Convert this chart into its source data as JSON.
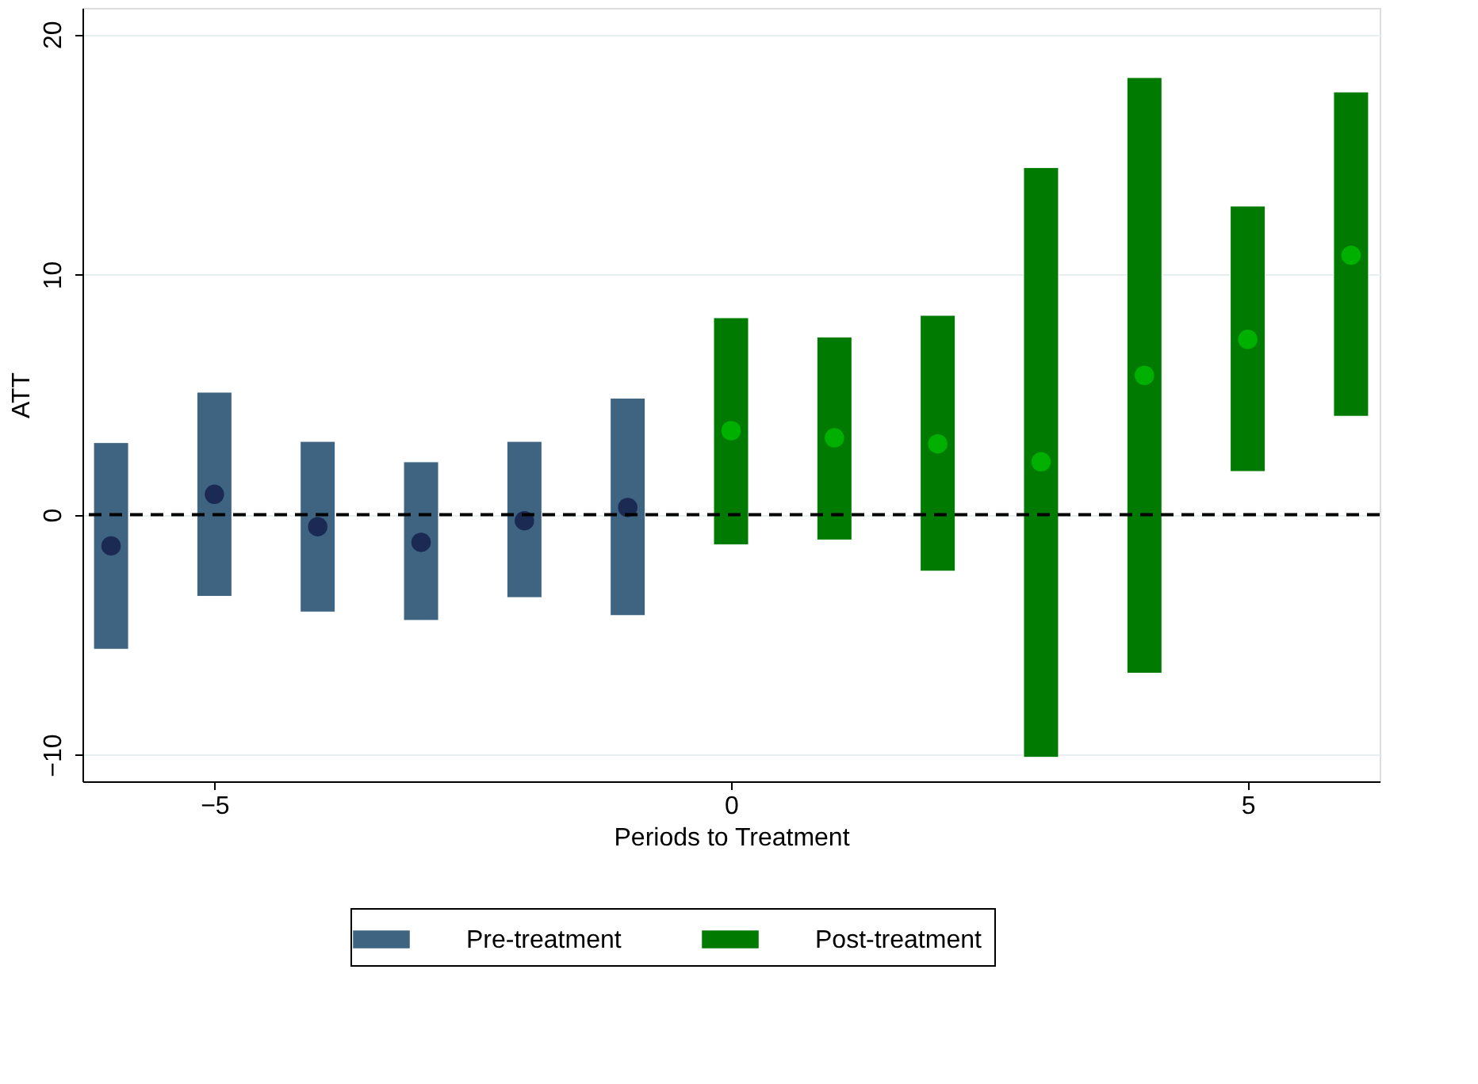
{
  "chart_data": {
    "type": "bar",
    "xlabel": "Periods to Treatment",
    "ylabel": "ATT",
    "xlim": [
      -6.2,
      6.2
    ],
    "xticks": [
      -5,
      0,
      5
    ],
    "ylim": [
      -11.1,
      21.1
    ],
    "yticks": [
      -10,
      0,
      10,
      20
    ],
    "grid": "y",
    "legend": "bottom",
    "ref_lines": [
      {
        "axis": "y",
        "value": 0,
        "color": "#000000",
        "line_style": "dashed"
      }
    ],
    "series": [
      {
        "name": "Pre-treatment",
        "color": "#3e6481",
        "x": [
          -6,
          -5,
          -4,
          -3,
          -2,
          -1
        ],
        "base": [
          -5.6,
          -3.4,
          -4.05,
          -4.4,
          -3.45,
          -4.2
        ],
        "values": [
          8.6,
          8.5,
          7.1,
          6.6,
          6.5,
          9.05
        ]
      },
      {
        "name": "Post-treatment",
        "color": "#007a00",
        "x": [
          0,
          1,
          2,
          3,
          4,
          5,
          6
        ],
        "base": [
          -1.25,
          -1.05,
          -2.35,
          -10.1,
          -6.6,
          1.8,
          4.1
        ],
        "values": [
          9.45,
          8.45,
          10.65,
          24.55,
          24.8,
          11.05,
          13.5
        ]
      },
      {
        "type": "scatter",
        "color": "#1b2a52",
        "marker": "circle",
        "x": [
          -6,
          -5,
          -4,
          -3,
          -2,
          -1
        ],
        "values": [
          -1.3,
          0.85,
          -0.5,
          -1.15,
          -0.25,
          0.3
        ]
      },
      {
        "type": "scatter",
        "color": "#00b000",
        "marker": "circle",
        "x": [
          0,
          1,
          2,
          3,
          4,
          5,
          6
        ],
        "values": [
          3.5,
          3.2,
          2.95,
          2.2,
          5.8,
          7.3,
          10.8
        ]
      }
    ]
  }
}
